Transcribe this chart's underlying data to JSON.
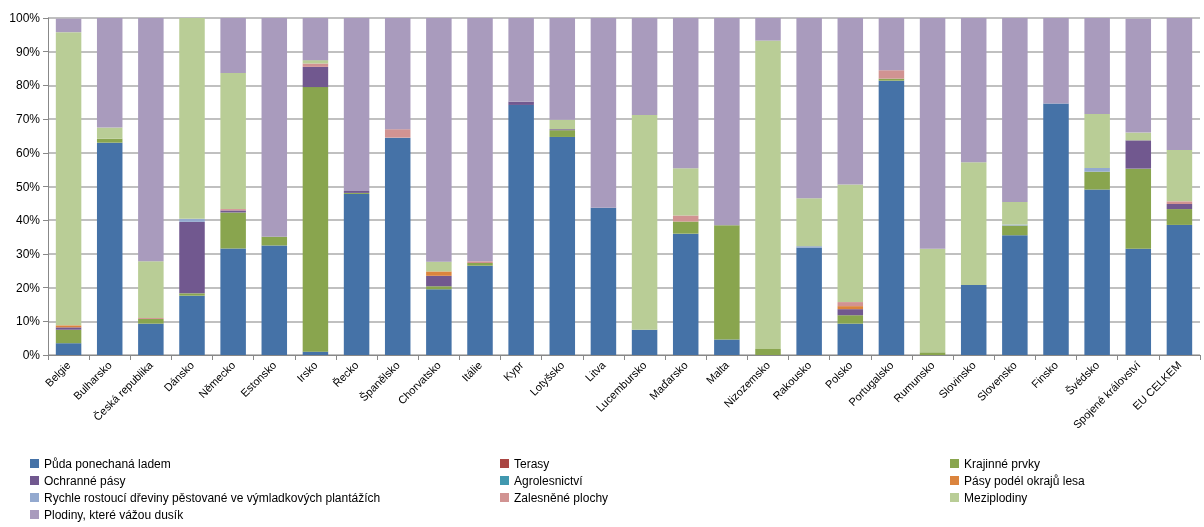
{
  "chart_data": {
    "type": "bar",
    "stacked": true,
    "grid": "y",
    "legend": "bottom",
    "categories": [
      "Belgie",
      "Bulharsko",
      "Česká republika",
      "Dánsko",
      "Německo",
      "Estonsko",
      "Irsko",
      "Řecko",
      "Španělsko",
      "Chorvatsko",
      "Itálie",
      "Kypr",
      "Lotyšsko",
      "Litva",
      "Lucembursko",
      "Maďarsko",
      "Malta",
      "Nizozemsko",
      "Rakousko",
      "Polsko",
      "Portugalsko",
      "Rumunsko",
      "Slovinsko",
      "Slovensko",
      "Finsko",
      "Švédsko",
      "Spojené království",
      "EU CELKEM"
    ],
    "ylim": [
      0,
      100
    ],
    "yticks": [
      {
        "value": 0,
        "label": "0%"
      },
      {
        "value": 10,
        "label": "10%"
      },
      {
        "value": 20,
        "label": "20%"
      },
      {
        "value": 30,
        "label": "30%"
      },
      {
        "value": 40,
        "label": "40%"
      },
      {
        "value": 50,
        "label": "50%"
      },
      {
        "value": 60,
        "label": "60%"
      },
      {
        "value": 70,
        "label": "70%"
      },
      {
        "value": 80,
        "label": "80%"
      },
      {
        "value": 90,
        "label": "90%"
      },
      {
        "value": 100,
        "label": "100%"
      }
    ],
    "series": [
      {
        "name": "Půda ponechaná ladem",
        "color": "#4572a7",
        "values": [
          3.5,
          63,
          9.3,
          17.6,
          31.6,
          32.5,
          1,
          47.8,
          64.5,
          19.5,
          26.5,
          74.2,
          64.7,
          43.7,
          7.5,
          36,
          4.6,
          0,
          31.9,
          9.3,
          81.4,
          0,
          20.8,
          35.5,
          74.6,
          49.1,
          31.5,
          38.6
        ]
      },
      {
        "name": "Terasy",
        "color": "#aa4643",
        "values": [
          0,
          0,
          0,
          0,
          0,
          0,
          0,
          0,
          0,
          0,
          0,
          0,
          0,
          0,
          0,
          0,
          0,
          0,
          0,
          0,
          0,
          0,
          0,
          0,
          0,
          0,
          0,
          0
        ]
      },
      {
        "name": "Krajinné prvky",
        "color": "#89a54e",
        "values": [
          4,
          1.2,
          1.4,
          0.7,
          10.7,
          2.6,
          78.5,
          0.3,
          0,
          0.9,
          0.8,
          0,
          2,
          0,
          0,
          3.6,
          33.9,
          1.8,
          0,
          2.5,
          0.6,
          0.8,
          0,
          2.9,
          0,
          5.3,
          23.8,
          4.7
        ]
      },
      {
        "name": "Ochranné pásy",
        "color": "#71588f",
        "values": [
          0.7,
          0,
          0,
          21.2,
          0.6,
          0,
          6,
          0.6,
          0,
          3.1,
          0,
          1,
          0.3,
          0,
          0,
          0,
          0,
          0,
          0,
          1.8,
          0,
          0,
          0,
          0,
          0,
          0,
          8.4,
          1.5
        ]
      },
      {
        "name": "Agrolesnictví",
        "color": "#4198af",
        "values": [
          0,
          0,
          0,
          0,
          0,
          0,
          0,
          0,
          0,
          0,
          0,
          0,
          0,
          0,
          0,
          0,
          0,
          0,
          0,
          0,
          0,
          0,
          0,
          0,
          0,
          0,
          0,
          0
        ]
      },
      {
        "name": "Pásy podél okrajů lesa",
        "color": "#db843d",
        "values": [
          0.6,
          0,
          0,
          0,
          0,
          0,
          0,
          0,
          0,
          1.3,
          0,
          0,
          0,
          0,
          0,
          0,
          0,
          0,
          0,
          0.9,
          0,
          0,
          0,
          0,
          0,
          0,
          0,
          0
        ]
      },
      {
        "name": "Rychle rostoucí dřeviny pěstované ve výmladkových plantážích",
        "color": "#93a9cf",
        "values": [
          0,
          0,
          0,
          0.9,
          0,
          0,
          0,
          0,
          0,
          0,
          0,
          0,
          0,
          0,
          0,
          0,
          0,
          0,
          0.4,
          0,
          0,
          0,
          0,
          0.3,
          0,
          1.1,
          0,
          0
        ]
      },
      {
        "name": "Zalesněné plochy",
        "color": "#d19392",
        "values": [
          null,
          0,
          0.3,
          0,
          0.4,
          0,
          1,
          0,
          2.5,
          0,
          0.5,
          0,
          0,
          0,
          0,
          1.8,
          0,
          0,
          0,
          1.2,
          2.5,
          0,
          0,
          0,
          0,
          0,
          null,
          0.8
        ]
      },
      {
        "name": "Meziplodiny",
        "color": "#b9cd96",
        "values": [
          87,
          3.3,
          16.8,
          59.6,
          40.4,
          0,
          1,
          0,
          0,
          2.9,
          0,
          0,
          2.8,
          0,
          63.7,
          14,
          0,
          91.5,
          14.2,
          34.9,
          0,
          30.7,
          36.4,
          6.7,
          0,
          16,
          2.3,
          15.2
        ]
      },
      {
        "name": "Plodiny, které vážou dusík",
        "color": "#a99bbd",
        "values": [
          4,
          32.5,
          72.2,
          0,
          16.3,
          64.9,
          12.5,
          51.3,
          33,
          72.3,
          72.2,
          24.8,
          30.2,
          56.3,
          28.8,
          44.6,
          61.5,
          6.7,
          53.5,
          49.4,
          15.5,
          68.5,
          42.8,
          54.6,
          25.4,
          28.5,
          33.8,
          39.2
        ]
      }
    ]
  }
}
